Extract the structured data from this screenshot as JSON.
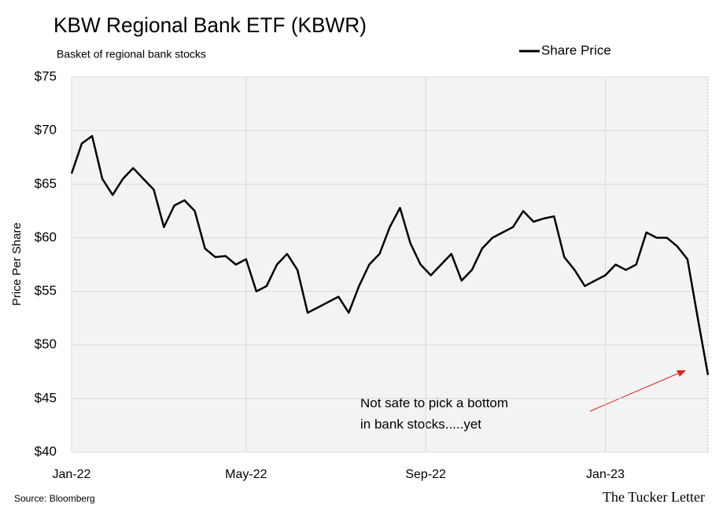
{
  "chart_data": {
    "type": "line",
    "title": "KBW Regional Bank ETF (KBWR)",
    "subtitle": "Basket of regional bank stocks",
    "y_label": "Price Per Share",
    "source": "Source: Bloomberg",
    "brand": "The Tucker Letter",
    "annotation": "Not safe to pick a bottom in bank stocks.....yet",
    "series": [
      {
        "name": "Share Price",
        "color": "#000000",
        "values": [
          66,
          68.8,
          69.5,
          65.5,
          64,
          65.5,
          66.5,
          65.5,
          64.5,
          61,
          63,
          63.5,
          62.5,
          59,
          58.2,
          58.3,
          57.5,
          58,
          55,
          55.5,
          57.5,
          58.5,
          57,
          53,
          53.5,
          54,
          54.5,
          53,
          55.5,
          57.5,
          58.5,
          61,
          62.8,
          59.5,
          57.5,
          56.5,
          57.5,
          58.5,
          56,
          57,
          59,
          60,
          60.5,
          61,
          62.5,
          61.5,
          61.8,
          62,
          58.2,
          57,
          55.5,
          56,
          56.5,
          57.5,
          57,
          57.5,
          60.5,
          60,
          60,
          59.2,
          58,
          52.5,
          47.2
        ]
      }
    ],
    "xlim": [
      0,
      62
    ],
    "xticks": [
      {
        "value": 0,
        "label": "Jan-22"
      },
      {
        "value": 17,
        "label": "May-22"
      },
      {
        "value": 34.5,
        "label": "Sep-22"
      },
      {
        "value": 52,
        "label": "Jan-23"
      }
    ],
    "ylim": [
      40,
      75
    ],
    "yticks": [
      {
        "value": 40,
        "label": "$40"
      },
      {
        "value": 45,
        "label": "$45"
      },
      {
        "value": 50,
        "label": "$50"
      },
      {
        "value": 55,
        "label": "$55"
      },
      {
        "value": 60,
        "label": "$60"
      },
      {
        "value": 65,
        "label": "$65"
      },
      {
        "value": 70,
        "label": "$70"
      },
      {
        "value": 75,
        "label": "$75"
      }
    ],
    "grid": true,
    "legend": "top-right"
  }
}
